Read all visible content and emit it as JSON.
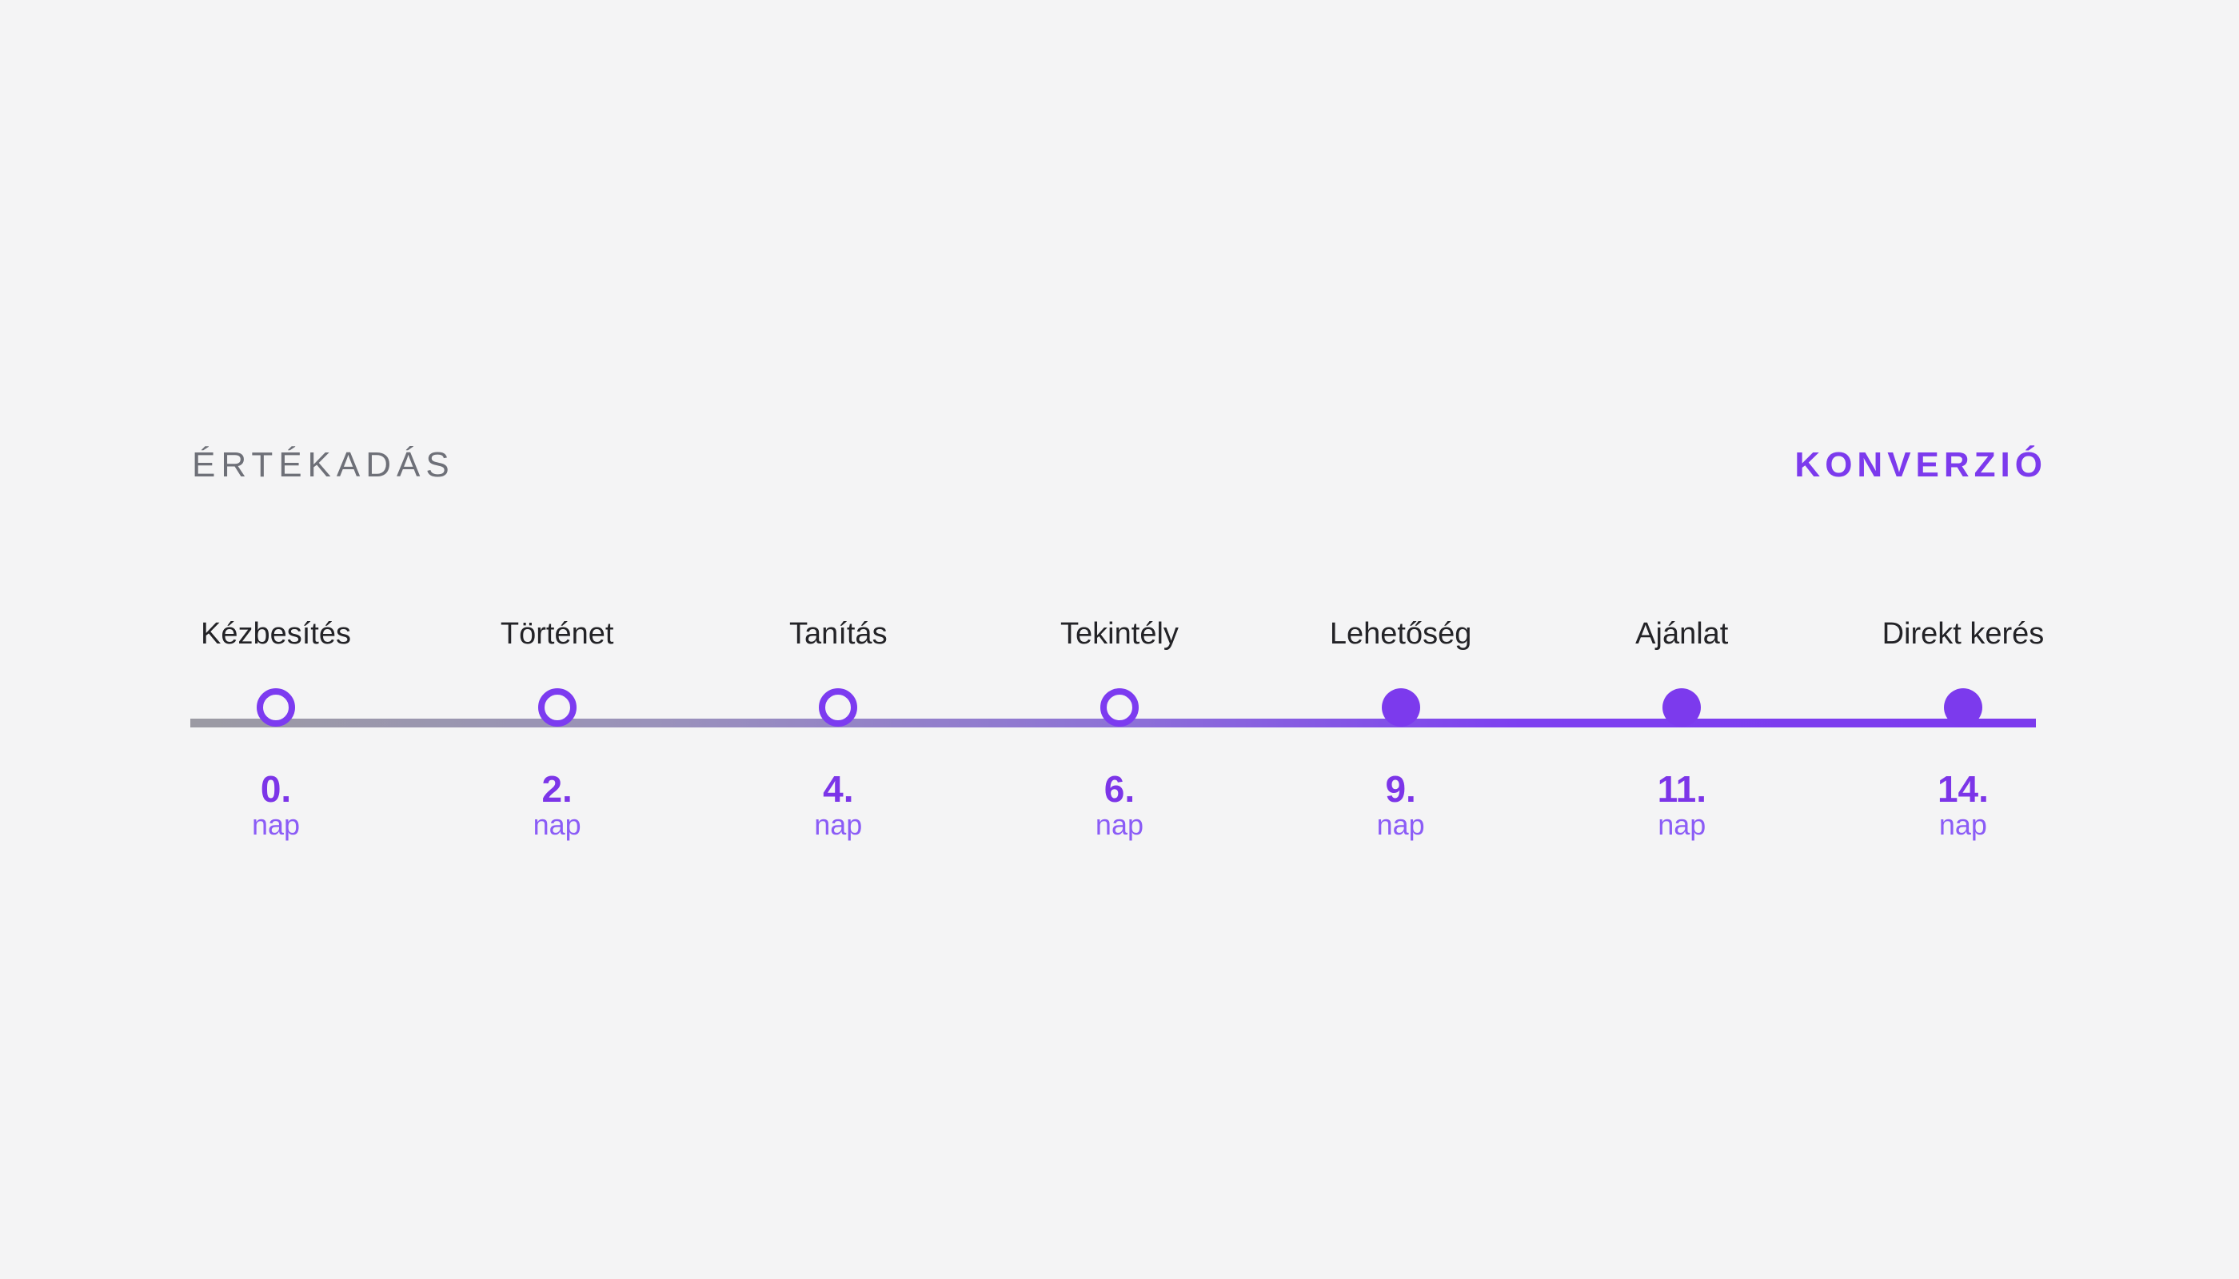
{
  "page": {
    "background_color": "#f4f4f5"
  },
  "header": {
    "left_label": "ÉRTÉKADÁS",
    "right_label": "KONVERZIÓ",
    "left_color": "#6e7078",
    "right_color": "#7c3aed"
  },
  "timeline": {
    "colors": {
      "accent": "#7c3aed",
      "accent_light": "#8b5cf6",
      "track_start_gray": "#9b9aa3",
      "step_label": "#232327"
    },
    "steps": [
      {
        "label": "Kézbesítés",
        "day": "0.",
        "unit": "nap",
        "state": "hollow"
      },
      {
        "label": "Történet",
        "day": "2.",
        "unit": "nap",
        "state": "hollow"
      },
      {
        "label": "Tanítás",
        "day": "4.",
        "unit": "nap",
        "state": "hollow"
      },
      {
        "label": "Tekintély",
        "day": "6.",
        "unit": "nap",
        "state": "hollow"
      },
      {
        "label": "Lehetőség",
        "day": "9.",
        "unit": "nap",
        "state": "filled"
      },
      {
        "label": "Ajánlat",
        "day": "11.",
        "unit": "nap",
        "state": "filled"
      },
      {
        "label": "Direkt kerés",
        "day": "14.",
        "unit": "nap",
        "state": "filled"
      }
    ]
  }
}
